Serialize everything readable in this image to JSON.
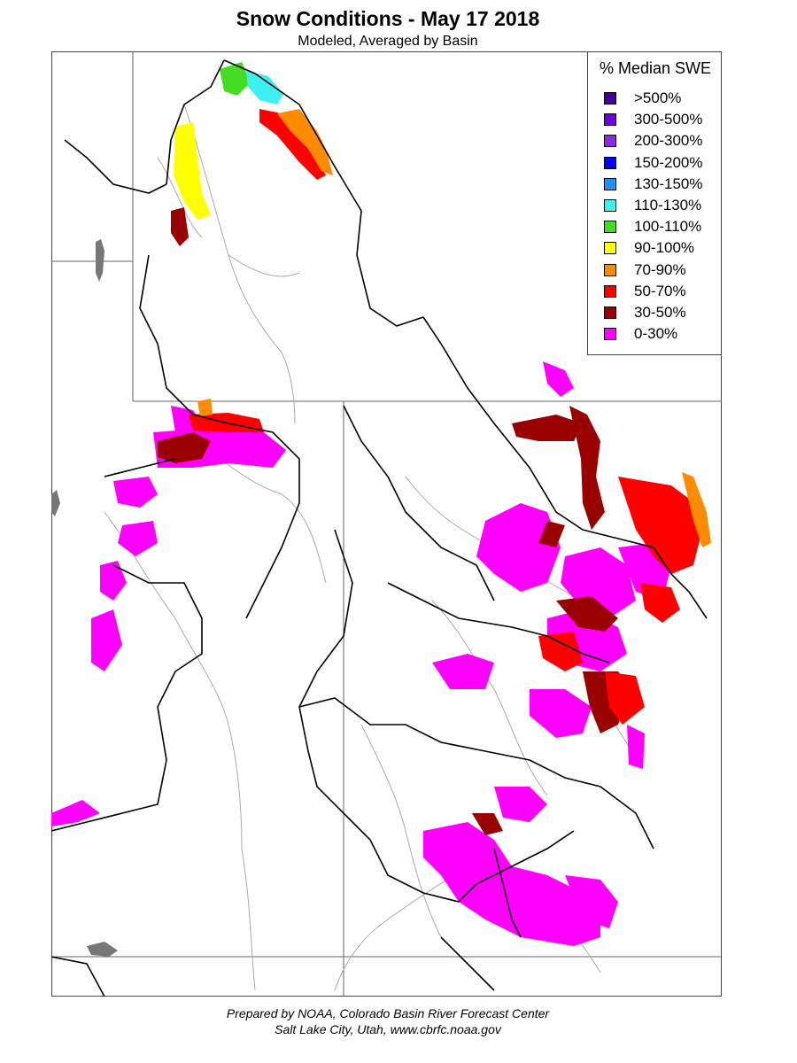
{
  "title": "Snow Conditions - May 17 2018",
  "subtitle": "Modeled, Averaged by Basin",
  "legend": {
    "title": "% Median SWE",
    "items": [
      {
        "label": ">500%",
        "color": "#3f0099"
      },
      {
        "label": "300-500%",
        "color": "#6a00e0"
      },
      {
        "label": "200-300%",
        "color": "#8a2be2"
      },
      {
        "label": "150-200%",
        "color": "#0000ff"
      },
      {
        "label": "130-150%",
        "color": "#1e90ff"
      },
      {
        "label": "110-130%",
        "color": "#40f0f0"
      },
      {
        "label": "100-110%",
        "color": "#44dd22"
      },
      {
        "label": "90-100%",
        "color": "#ffff00"
      },
      {
        "label": "70-90%",
        "color": "#ff8c00"
      },
      {
        "label": "50-70%",
        "color": "#ff0000"
      },
      {
        "label": "30-50%",
        "color": "#990000"
      },
      {
        "label": "0-30%",
        "color": "#ff00ff"
      }
    ]
  },
  "credits": {
    "line1": "Prepared by NOAA, Colorado Basin River Forecast Center",
    "line2": "Salt Lake City, Utah, www.cbrfc.noaa.gov"
  },
  "colors": {
    "basin_border": "#000000",
    "state_border": "#666666",
    "river": "#aaaaaa",
    "lake": "#777777"
  }
}
